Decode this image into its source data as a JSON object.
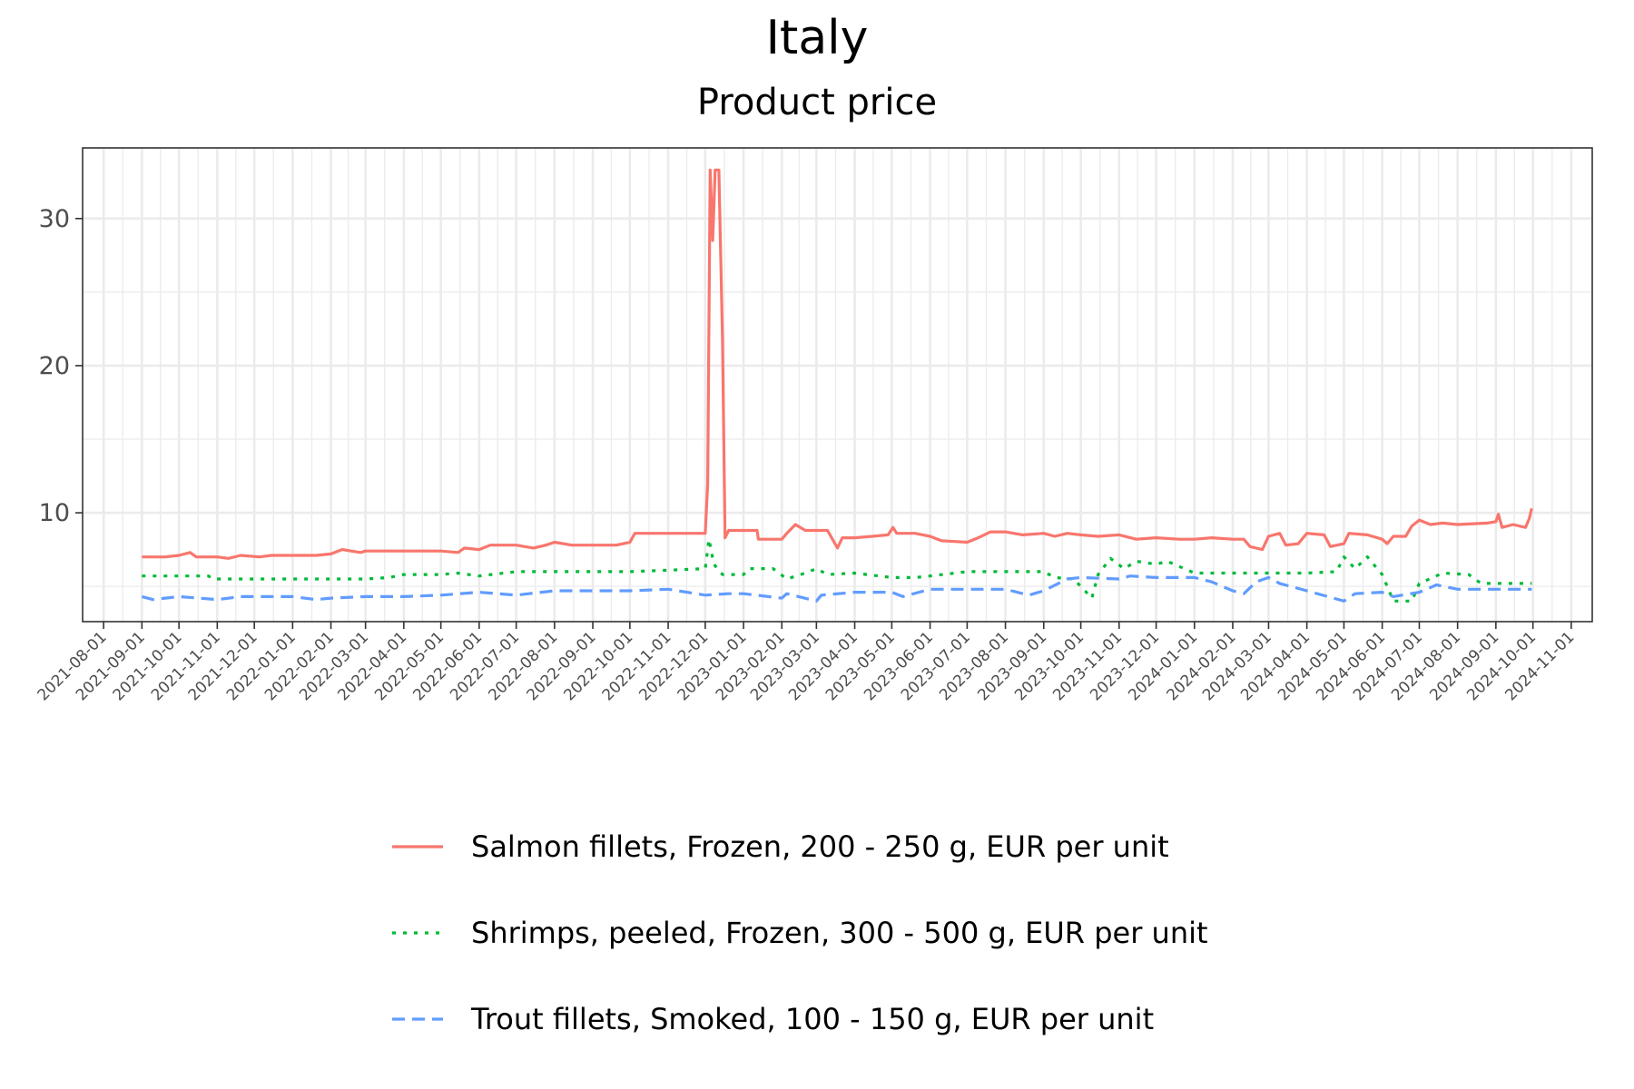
{
  "chart_data": {
    "type": "line",
    "title": "Italy",
    "subtitle": "Product price",
    "xlabel": "",
    "ylabel": "",
    "x_range": [
      "2021-07-15",
      "2024-11-18"
    ],
    "ylim": [
      2.6,
      34.8
    ],
    "y_ticks": [
      10,
      20,
      30
    ],
    "x_ticks": [
      "2021-08-01",
      "2021-09-01",
      "2021-10-01",
      "2021-11-01",
      "2021-12-01",
      "2022-01-01",
      "2022-02-01",
      "2022-03-01",
      "2022-04-01",
      "2022-05-01",
      "2022-06-01",
      "2022-07-01",
      "2022-08-01",
      "2022-09-01",
      "2022-10-01",
      "2022-11-01",
      "2022-12-01",
      "2023-01-01",
      "2023-02-01",
      "2023-03-01",
      "2023-04-01",
      "2023-05-01",
      "2023-06-01",
      "2023-07-01",
      "2023-08-01",
      "2023-09-01",
      "2023-10-01",
      "2023-11-01",
      "2023-12-01",
      "2024-01-01",
      "2024-02-01",
      "2024-03-01",
      "2024-04-01",
      "2024-05-01",
      "2024-06-01",
      "2024-07-01",
      "2024-08-01",
      "2024-09-01",
      "2024-10-01",
      "2024-11-01"
    ],
    "grid": true,
    "legend_position": "bottom",
    "series": [
      {
        "name": "Salmon fillets, Frozen, 200 - 250 g, EUR per unit",
        "color": "#F8766D",
        "dash": "solid",
        "points": [
          [
            "2021-09-01",
            7.0
          ],
          [
            "2021-09-20",
            7.0
          ],
          [
            "2021-10-01",
            7.1
          ],
          [
            "2021-10-10",
            7.3
          ],
          [
            "2021-10-15",
            7.0
          ],
          [
            "2021-11-01",
            7.0
          ],
          [
            "2021-11-10",
            6.9
          ],
          [
            "2021-11-20",
            7.1
          ],
          [
            "2021-12-05",
            7.0
          ],
          [
            "2021-12-15",
            7.1
          ],
          [
            "2022-01-01",
            7.1
          ],
          [
            "2022-01-20",
            7.1
          ],
          [
            "2022-02-01",
            7.2
          ],
          [
            "2022-02-10",
            7.5
          ],
          [
            "2022-02-25",
            7.3
          ],
          [
            "2022-03-01",
            7.4
          ],
          [
            "2022-04-01",
            7.4
          ],
          [
            "2022-05-01",
            7.4
          ],
          [
            "2022-05-15",
            7.3
          ],
          [
            "2022-05-20",
            7.6
          ],
          [
            "2022-06-01",
            7.5
          ],
          [
            "2022-06-10",
            7.8
          ],
          [
            "2022-07-01",
            7.8
          ],
          [
            "2022-07-15",
            7.6
          ],
          [
            "2022-07-25",
            7.8
          ],
          [
            "2022-08-01",
            8.0
          ],
          [
            "2022-08-15",
            7.8
          ],
          [
            "2022-09-01",
            7.8
          ],
          [
            "2022-09-20",
            7.8
          ],
          [
            "2022-10-01",
            8.0
          ],
          [
            "2022-10-05",
            8.6
          ],
          [
            "2022-11-01",
            8.6
          ],
          [
            "2022-11-20",
            8.6
          ],
          [
            "2022-12-01",
            8.6
          ],
          [
            "2022-12-03",
            12.0
          ],
          [
            "2022-12-05",
            33.3
          ],
          [
            "2022-12-07",
            28.5
          ],
          [
            "2022-12-09",
            33.3
          ],
          [
            "2022-12-12",
            33.3
          ],
          [
            "2022-12-15",
            21.8
          ],
          [
            "2022-12-17",
            8.3
          ],
          [
            "2022-12-20",
            8.8
          ],
          [
            "2023-01-01",
            8.8
          ],
          [
            "2023-01-12",
            8.8
          ],
          [
            "2023-01-13",
            8.2
          ],
          [
            "2023-01-25",
            8.2
          ],
          [
            "2023-02-01",
            8.2
          ],
          [
            "2023-02-05",
            8.6
          ],
          [
            "2023-02-12",
            9.2
          ],
          [
            "2023-02-20",
            8.8
          ],
          [
            "2023-03-10",
            8.8
          ],
          [
            "2023-03-18",
            7.6
          ],
          [
            "2023-03-22",
            8.3
          ],
          [
            "2023-04-01",
            8.3
          ],
          [
            "2023-04-15",
            8.4
          ],
          [
            "2023-04-28",
            8.5
          ],
          [
            "2023-05-02",
            9.0
          ],
          [
            "2023-05-05",
            8.6
          ],
          [
            "2023-05-20",
            8.6
          ],
          [
            "2023-06-01",
            8.4
          ],
          [
            "2023-06-10",
            8.1
          ],
          [
            "2023-07-01",
            8.0
          ],
          [
            "2023-07-10",
            8.3
          ],
          [
            "2023-07-20",
            8.7
          ],
          [
            "2023-08-01",
            8.7
          ],
          [
            "2023-08-15",
            8.5
          ],
          [
            "2023-09-01",
            8.6
          ],
          [
            "2023-09-10",
            8.4
          ],
          [
            "2023-09-20",
            8.6
          ],
          [
            "2023-10-01",
            8.5
          ],
          [
            "2023-10-15",
            8.4
          ],
          [
            "2023-11-01",
            8.5
          ],
          [
            "2023-11-15",
            8.2
          ],
          [
            "2023-12-01",
            8.3
          ],
          [
            "2023-12-20",
            8.2
          ],
          [
            "2024-01-01",
            8.2
          ],
          [
            "2024-01-15",
            8.3
          ],
          [
            "2024-02-01",
            8.2
          ],
          [
            "2024-02-10",
            8.2
          ],
          [
            "2024-02-15",
            7.7
          ],
          [
            "2024-02-25",
            7.5
          ],
          [
            "2024-03-01",
            8.4
          ],
          [
            "2024-03-10",
            8.6
          ],
          [
            "2024-03-15",
            7.8
          ],
          [
            "2024-03-25",
            7.9
          ],
          [
            "2024-04-01",
            8.6
          ],
          [
            "2024-04-15",
            8.5
          ],
          [
            "2024-04-20",
            7.7
          ],
          [
            "2024-05-01",
            7.9
          ],
          [
            "2024-05-05",
            8.6
          ],
          [
            "2024-05-20",
            8.5
          ],
          [
            "2024-06-01",
            8.2
          ],
          [
            "2024-06-05",
            7.9
          ],
          [
            "2024-06-10",
            8.4
          ],
          [
            "2024-06-20",
            8.4
          ],
          [
            "2024-06-25",
            9.1
          ],
          [
            "2024-07-01",
            9.5
          ],
          [
            "2024-07-10",
            9.2
          ],
          [
            "2024-07-20",
            9.3
          ],
          [
            "2024-08-01",
            9.2
          ],
          [
            "2024-08-25",
            9.3
          ],
          [
            "2024-09-01",
            9.4
          ],
          [
            "2024-09-03",
            9.9
          ],
          [
            "2024-09-06",
            9.0
          ],
          [
            "2024-09-15",
            9.2
          ],
          [
            "2024-09-25",
            9.0
          ],
          [
            "2024-09-28",
            9.6
          ],
          [
            "2024-09-30",
            10.3
          ]
        ]
      },
      {
        "name": "Shrimps, peeled, Frozen, 300 - 500 g, EUR per unit",
        "color": "#00BA38",
        "dash": "dotted",
        "points": [
          [
            "2021-09-01",
            5.7
          ],
          [
            "2021-10-25",
            5.7
          ],
          [
            "2021-10-28",
            5.5
          ],
          [
            "2022-01-01",
            5.5
          ],
          [
            "2022-03-01",
            5.5
          ],
          [
            "2022-03-20",
            5.6
          ],
          [
            "2022-04-01",
            5.8
          ],
          [
            "2022-05-01",
            5.8
          ],
          [
            "2022-05-15",
            5.9
          ],
          [
            "2022-06-01",
            5.7
          ],
          [
            "2022-07-01",
            6.0
          ],
          [
            "2022-08-01",
            6.0
          ],
          [
            "2022-09-01",
            6.0
          ],
          [
            "2022-10-01",
            6.0
          ],
          [
            "2022-11-01",
            6.1
          ],
          [
            "2022-12-01",
            6.2
          ],
          [
            "2022-12-04",
            8.2
          ],
          [
            "2022-12-08",
            6.5
          ],
          [
            "2022-12-15",
            5.8
          ],
          [
            "2023-01-01",
            5.8
          ],
          [
            "2023-01-05",
            6.2
          ],
          [
            "2023-01-25",
            6.2
          ],
          [
            "2023-02-05",
            5.5
          ],
          [
            "2023-02-20",
            5.9
          ],
          [
            "2023-03-01",
            6.2
          ],
          [
            "2023-03-10",
            5.8
          ],
          [
            "2023-04-01",
            5.9
          ],
          [
            "2023-05-01",
            5.6
          ],
          [
            "2023-05-20",
            5.6
          ],
          [
            "2023-06-01",
            5.7
          ],
          [
            "2023-07-01",
            6.0
          ],
          [
            "2023-08-01",
            6.0
          ],
          [
            "2023-09-01",
            6.0
          ],
          [
            "2023-09-10",
            5.6
          ],
          [
            "2023-09-25",
            5.5
          ],
          [
            "2023-10-01",
            5.0
          ],
          [
            "2023-10-10",
            4.2
          ],
          [
            "2023-10-15",
            5.8
          ],
          [
            "2023-10-25",
            6.9
          ],
          [
            "2023-11-05",
            6.2
          ],
          [
            "2023-11-15",
            6.7
          ],
          [
            "2023-12-01",
            6.5
          ],
          [
            "2023-12-10",
            6.7
          ],
          [
            "2024-01-01",
            5.9
          ],
          [
            "2024-02-01",
            5.9
          ],
          [
            "2024-03-01",
            5.9
          ],
          [
            "2024-04-01",
            5.9
          ],
          [
            "2024-04-25",
            6.0
          ],
          [
            "2024-05-01",
            7.0
          ],
          [
            "2024-05-10",
            6.2
          ],
          [
            "2024-05-20",
            7.0
          ],
          [
            "2024-06-01",
            5.8
          ],
          [
            "2024-06-10",
            4.0
          ],
          [
            "2024-06-25",
            4.0
          ],
          [
            "2024-07-01",
            5.2
          ],
          [
            "2024-07-20",
            5.9
          ],
          [
            "2024-08-10",
            5.8
          ],
          [
            "2024-08-20",
            5.2
          ],
          [
            "2024-09-01",
            5.2
          ],
          [
            "2024-09-30",
            5.2
          ]
        ]
      },
      {
        "name": "Trout fillets, Smoked, 100 - 150 g, EUR per unit",
        "color": "#619CFF",
        "dash": "dashed",
        "points": [
          [
            "2021-09-01",
            4.3
          ],
          [
            "2021-09-10",
            4.1
          ],
          [
            "2021-10-01",
            4.3
          ],
          [
            "2021-11-01",
            4.1
          ],
          [
            "2021-11-20",
            4.3
          ],
          [
            "2021-12-01",
            4.3
          ],
          [
            "2022-01-01",
            4.3
          ],
          [
            "2022-01-20",
            4.1
          ],
          [
            "2022-02-01",
            4.2
          ],
          [
            "2022-03-01",
            4.3
          ],
          [
            "2022-04-01",
            4.3
          ],
          [
            "2022-05-01",
            4.4
          ],
          [
            "2022-06-01",
            4.6
          ],
          [
            "2022-07-01",
            4.4
          ],
          [
            "2022-08-01",
            4.7
          ],
          [
            "2022-09-01",
            4.7
          ],
          [
            "2022-10-01",
            4.7
          ],
          [
            "2022-11-01",
            4.8
          ],
          [
            "2022-12-01",
            4.4
          ],
          [
            "2022-12-20",
            4.5
          ],
          [
            "2023-01-01",
            4.5
          ],
          [
            "2023-02-01",
            4.2
          ],
          [
            "2023-02-05",
            4.5
          ],
          [
            "2023-03-01",
            4.0
          ],
          [
            "2023-03-05",
            4.4
          ],
          [
            "2023-04-01",
            4.6
          ],
          [
            "2023-05-01",
            4.6
          ],
          [
            "2023-05-10",
            4.3
          ],
          [
            "2023-06-01",
            4.8
          ],
          [
            "2023-07-01",
            4.8
          ],
          [
            "2023-08-01",
            4.8
          ],
          [
            "2023-08-20",
            4.4
          ],
          [
            "2023-09-01",
            4.7
          ],
          [
            "2023-09-20",
            5.5
          ],
          [
            "2023-10-01",
            5.6
          ],
          [
            "2023-11-01",
            5.5
          ],
          [
            "2023-11-10",
            5.7
          ],
          [
            "2023-12-01",
            5.6
          ],
          [
            "2024-01-01",
            5.6
          ],
          [
            "2024-01-15",
            5.3
          ],
          [
            "2024-02-01",
            4.7
          ],
          [
            "2024-02-10",
            4.5
          ],
          [
            "2024-02-20",
            5.3
          ],
          [
            "2024-03-01",
            5.6
          ],
          [
            "2024-03-10",
            5.2
          ],
          [
            "2024-04-01",
            4.7
          ],
          [
            "2024-05-01",
            4.0
          ],
          [
            "2024-05-10",
            4.5
          ],
          [
            "2024-06-01",
            4.6
          ],
          [
            "2024-06-10",
            4.3
          ],
          [
            "2024-07-01",
            4.6
          ],
          [
            "2024-07-15",
            5.1
          ],
          [
            "2024-08-01",
            4.8
          ],
          [
            "2024-09-01",
            4.8
          ],
          [
            "2024-09-30",
            4.8
          ]
        ]
      }
    ]
  }
}
